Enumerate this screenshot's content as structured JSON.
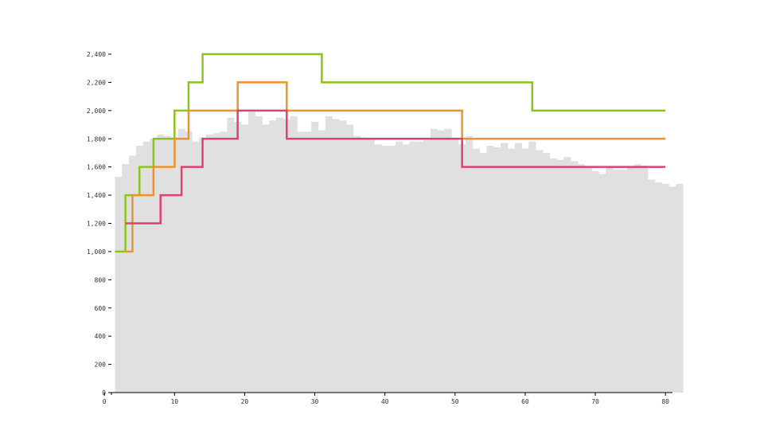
{
  "chart_data": {
    "type": "bar",
    "title": "",
    "xlabel": "",
    "ylabel": "",
    "xlim": [
      1,
      81
    ],
    "ylim": [
      0,
      2400
    ],
    "x_ticks": [
      0,
      10,
      20,
      30,
      40,
      50,
      60,
      70,
      80
    ],
    "x_tick_labels": [
      "0",
      "10",
      "20",
      "30",
      "40",
      "50",
      "60",
      "70",
      "80"
    ],
    "y_ticks": [
      0,
      200,
      400,
      600,
      800,
      1000,
      1200,
      1400,
      1600,
      1800,
      2000,
      2200,
      2400
    ],
    "y_tick_labels": [
      "0",
      "200",
      "400",
      "600",
      "800",
      "1,000",
      "1,200",
      "1,400",
      "1,600",
      "1,800",
      "2,000",
      "2,200",
      "2,400"
    ],
    "grid": false,
    "histogram": {
      "x_start": 2,
      "bin_width": 1,
      "color": "#e0e0e0",
      "values": [
        1530,
        1620,
        1680,
        1750,
        1780,
        1800,
        1830,
        1820,
        1810,
        1870,
        1850,
        1780,
        1810,
        1830,
        1840,
        1850,
        1950,
        1920,
        1900,
        1990,
        1960,
        1900,
        1930,
        1950,
        1940,
        1960,
        1850,
        1850,
        1920,
        1860,
        1960,
        1940,
        1930,
        1900,
        1820,
        1810,
        1800,
        1760,
        1750,
        1750,
        1780,
        1760,
        1780,
        1780,
        1790,
        1870,
        1860,
        1870,
        1800,
        1760,
        1820,
        1730,
        1700,
        1750,
        1740,
        1770,
        1730,
        1770,
        1730,
        1780,
        1720,
        1700,
        1660,
        1650,
        1670,
        1640,
        1620,
        1600,
        1570,
        1550,
        1600,
        1580,
        1580,
        1600,
        1620,
        1610,
        1510,
        1490,
        1480,
        1460,
        1480
      ]
    },
    "series": [
      {
        "color": "#8dc21f",
        "steps": [
          [
            1.5,
            1000
          ],
          [
            3,
            1400
          ],
          [
            5,
            1600
          ],
          [
            7,
            1800
          ],
          [
            10,
            2000
          ],
          [
            12,
            2200
          ],
          [
            14,
            2400
          ],
          [
            31,
            2200
          ],
          [
            61,
            2000
          ],
          [
            80,
            2000
          ]
        ]
      },
      {
        "color": "#f0922b",
        "steps": [
          [
            3,
            1000
          ],
          [
            4,
            1400
          ],
          [
            7,
            1600
          ],
          [
            10,
            1800
          ],
          [
            12,
            2000
          ],
          [
            19,
            2200
          ],
          [
            26,
            2000
          ],
          [
            51,
            1800
          ],
          [
            80,
            1800
          ]
        ]
      },
      {
        "color": "#e0406e",
        "steps": [
          [
            3,
            1200
          ],
          [
            8,
            1400
          ],
          [
            11,
            1600
          ],
          [
            14,
            1800
          ],
          [
            19,
            2000
          ],
          [
            26,
            1800
          ],
          [
            51,
            1600
          ],
          [
            80,
            1600
          ]
        ]
      }
    ]
  }
}
